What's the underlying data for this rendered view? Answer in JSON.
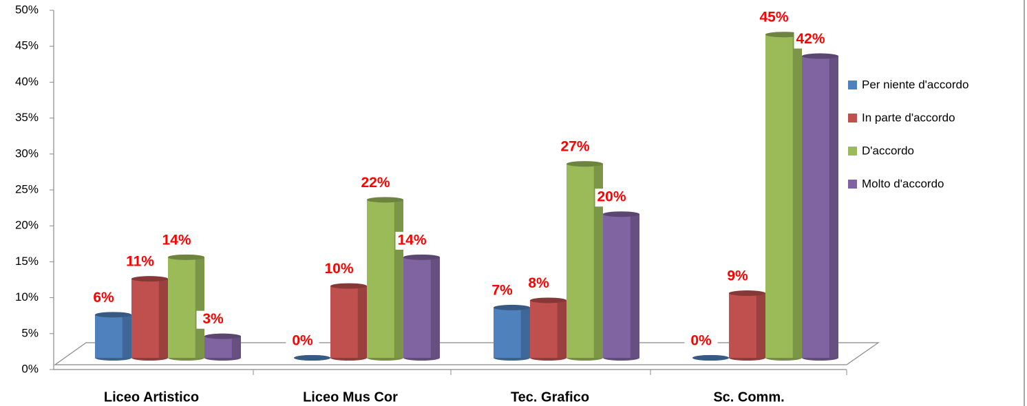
{
  "chart_data": {
    "type": "bar",
    "categories": [
      "Liceo Artistico",
      "Liceo Mus Cor",
      "Tec. Grafico",
      "Sc. Comm."
    ],
    "series": [
      {
        "name": "Per niente d'accordo",
        "color": "#4f81bd",
        "values": [
          6,
          0,
          7,
          0
        ],
        "value_labels": [
          "6%",
          "0%",
          "7%",
          "0%"
        ]
      },
      {
        "name": "In parte d'accordo",
        "color": "#c0504d",
        "values": [
          11,
          10,
          8,
          9
        ],
        "value_labels": [
          "11%",
          "10%",
          "8%",
          "9%"
        ]
      },
      {
        "name": "D'accordo",
        "color": "#9bbb59",
        "values": [
          14,
          22,
          27,
          45
        ],
        "value_labels": [
          "14%",
          "22%",
          "27%",
          "45%"
        ]
      },
      {
        "name": "Molto d'accordo",
        "color": "#8064a2",
        "values": [
          3,
          14,
          20,
          42
        ],
        "value_labels": [
          "3%",
          "14%",
          "20%",
          "42%"
        ]
      }
    ],
    "ylim": [
      0,
      50
    ],
    "yticks": [
      {
        "value": 0,
        "label": "0%"
      },
      {
        "value": 5,
        "label": "5%"
      },
      {
        "value": 10,
        "label": "10%"
      },
      {
        "value": 15,
        "label": "15%"
      },
      {
        "value": 20,
        "label": "20%"
      },
      {
        "value": 25,
        "label": "25%"
      },
      {
        "value": 30,
        "label": "30%"
      },
      {
        "value": 35,
        "label": "35%"
      },
      {
        "value": 40,
        "label": "40%"
      },
      {
        "value": 45,
        "label": "45%"
      },
      {
        "value": 50,
        "label": "50%"
      }
    ],
    "legend": "right"
  }
}
